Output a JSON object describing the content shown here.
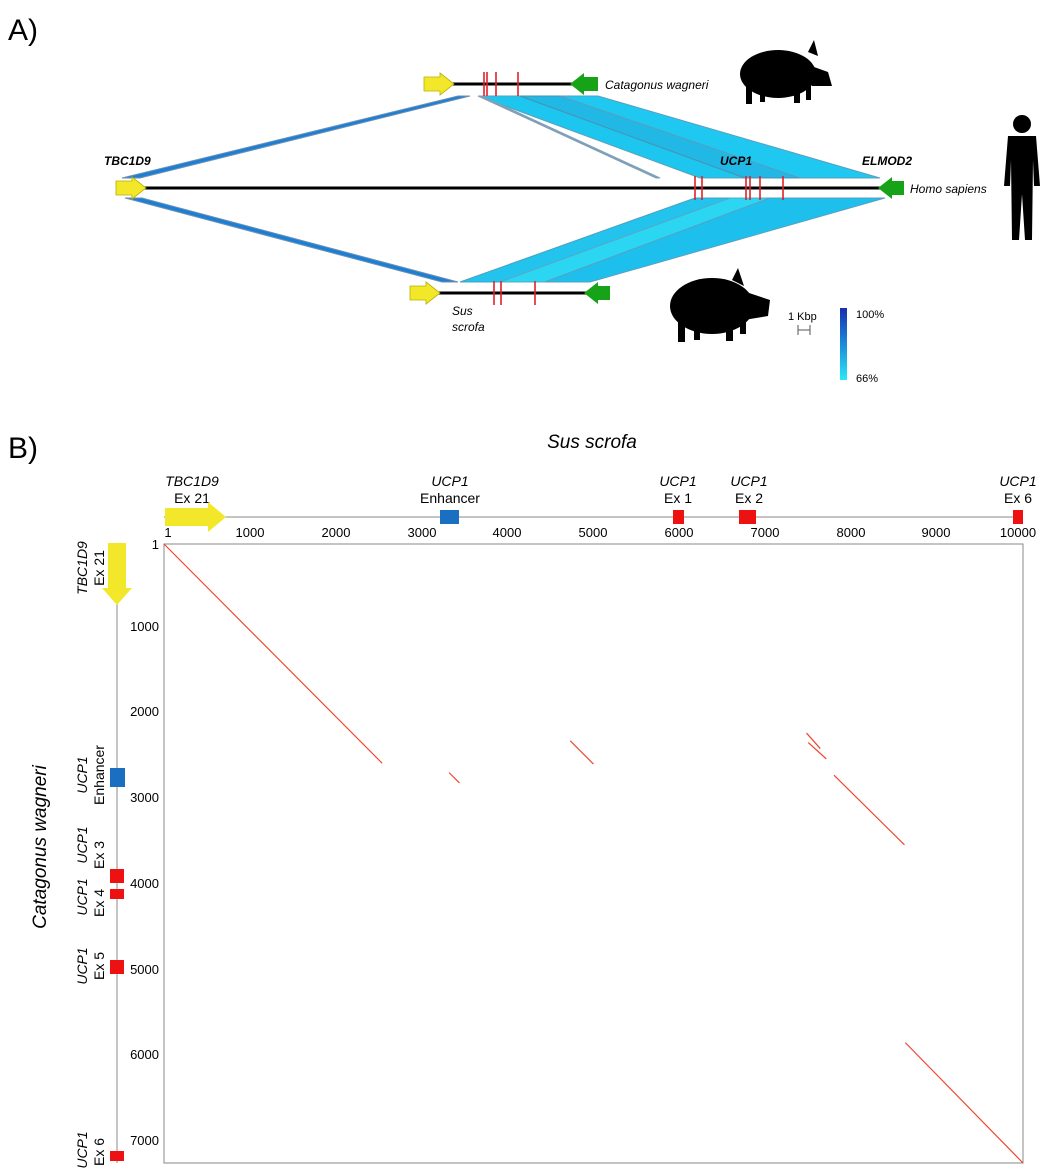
{
  "panel_a": {
    "label": "A)",
    "species": {
      "catagonus": "Catagonus wagneri",
      "human": "Homo sapiens",
      "sus_line1": "Sus",
      "sus_line2": "scrofa"
    },
    "genes": {
      "left": "TBC1D9",
      "middle": "UCP1",
      "right": "ELMOD2"
    },
    "scale_bar": "1 Kbp",
    "identity_legend": {
      "max": "100%",
      "min": "66%"
    },
    "colors": {
      "start_arrow": "#f2e829",
      "end_arrow": "#17a317",
      "exon": "#e0202a",
      "high_identity": "#1c3fc4",
      "low_identity": "#29e0f5",
      "mid_identity": "#1a7fd4"
    }
  },
  "panel_b": {
    "label": "B)",
    "x_title": "Sus scrofa",
    "y_title": "Catagonus wagneri",
    "x_ticks": [
      "1",
      "1000",
      "2000",
      "3000",
      "4000",
      "5000",
      "6000",
      "7000",
      "8000",
      "9000",
      "10000"
    ],
    "y_ticks": [
      "1",
      "1000",
      "2000",
      "3000",
      "4000",
      "5000",
      "6000",
      "7000"
    ],
    "top_annotations": [
      {
        "name": "TBC1D9",
        "sub": "Ex 21"
      },
      {
        "name": "UCP1",
        "sub": "Enhancer"
      },
      {
        "name": "UCP1",
        "sub": "Ex 1"
      },
      {
        "name": "UCP1",
        "sub": "Ex 2"
      },
      {
        "name": "UCP1",
        "sub": "Ex 6"
      }
    ],
    "left_annotations": [
      {
        "name": "TBC1D9",
        "sub": "Ex 21"
      },
      {
        "name": "UCP1",
        "sub": "Enhancer"
      },
      {
        "name": "UCP1",
        "sub": "Ex 3"
      },
      {
        "name": "UCP1",
        "sub": "Ex 4"
      },
      {
        "name": "UCP1",
        "sub": "Ex 5"
      },
      {
        "name": "UCP1",
        "sub": "Ex 6"
      }
    ],
    "colors": {
      "dots": "#f0462d",
      "exon": "#ee1111",
      "enhancer": "#1a6fc0",
      "tbc_arrow": "#f2e829"
    }
  },
  "chart_data": {
    "type": "scatter",
    "title": "",
    "xlabel": "Sus scrofa",
    "ylabel": "Catagonus wagneri",
    "xlim": [
      1,
      10000
    ],
    "ylim": [
      1,
      7200
    ],
    "series": [
      {
        "name": "",
        "segments": [
          {
            "x": [
              1,
              2540
            ],
            "y": [
              1,
              2550
            ]
          },
          {
            "x": [
              3320,
              3440
            ],
            "y": [
              2660,
              2780
            ]
          },
          {
            "x": [
              4730,
              5000
            ],
            "y": [
              2290,
              2560
            ]
          },
          {
            "x": [
              7480,
              7640
            ],
            "y": [
              2200,
              2380
            ]
          },
          {
            "x": [
              7500,
              7710
            ],
            "y": [
              2310,
              2500
            ]
          },
          {
            "x": [
              7800,
              8620
            ],
            "y": [
              2690,
              3500
            ]
          },
          {
            "x": [
              8630,
              10000
            ],
            "y": [
              5800,
              7200
            ]
          }
        ]
      }
    ]
  }
}
